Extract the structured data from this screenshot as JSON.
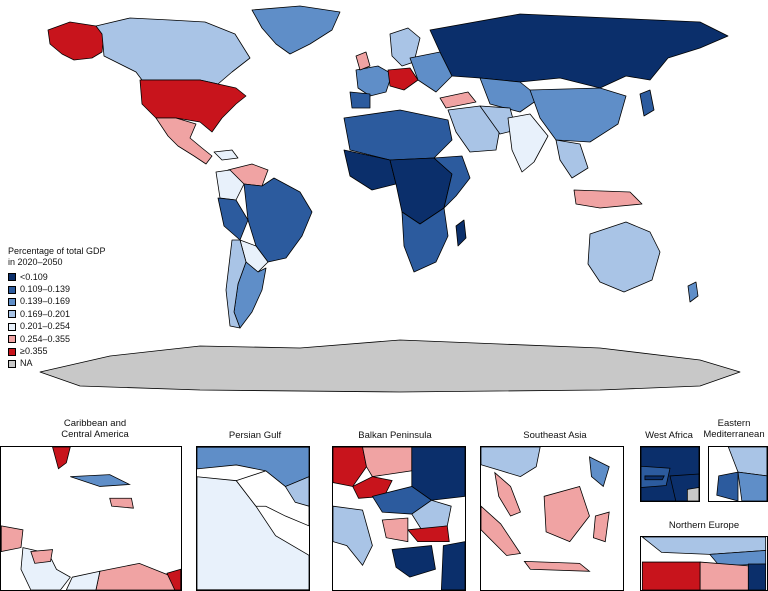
{
  "colors": {
    "c1": "#0b2f6b",
    "c2": "#2c5b9e",
    "c3": "#5f8ec8",
    "c4": "#a9c4e6",
    "c5": "#e8f1fb",
    "c6": "#f0a3a3",
    "c7": "#c8141c",
    "na": "#c8c8c8"
  },
  "legend": {
    "title": "Percentage of total GDP\nin 2020–2050",
    "items": [
      {
        "label": "<0.109",
        "color": "#0b2f6b"
      },
      {
        "label": "0.109–0.139",
        "color": "#2c5b9e"
      },
      {
        "label": "0.139–0.169",
        "color": "#5f8ec8"
      },
      {
        "label": "0.169–0.201",
        "color": "#a9c4e6"
      },
      {
        "label": "0.201–0.254",
        "color": "#e8f1fb"
      },
      {
        "label": "0.254–0.355",
        "color": "#f0a3a3"
      },
      {
        "label": "≥0.355",
        "color": "#c8141c"
      },
      {
        "label": "NA",
        "color": "#c8c8c8"
      }
    ]
  },
  "insets": [
    {
      "key": "caribbean",
      "label": "Caribbean and\nCentral America"
    },
    {
      "key": "persian_gulf",
      "label": "Persian Gulf"
    },
    {
      "key": "balkan",
      "label": "Balkan Peninsula"
    },
    {
      "key": "se_asia",
      "label": "Southeast Asia"
    },
    {
      "key": "west_africa",
      "label": "West Africa"
    },
    {
      "key": "east_med",
      "label": "Eastern\nMediterranean"
    },
    {
      "key": "n_europe",
      "label": "Northern Europe"
    }
  ]
}
